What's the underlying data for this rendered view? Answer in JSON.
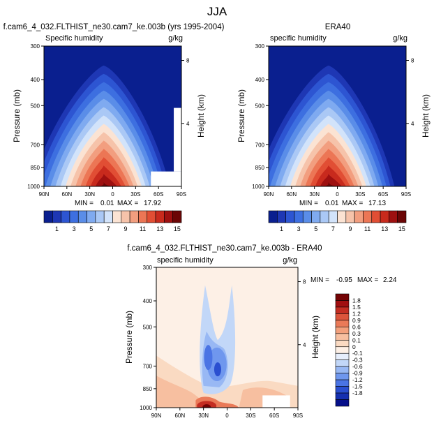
{
  "page_title": "JJA",
  "colors": {
    "abs_levels": [
      "#0a1f8f",
      "#1e37b4",
      "#2d55d2",
      "#3d6fe0",
      "#5a8de8",
      "#7faaf0",
      "#aac8f5",
      "#d2e3fa",
      "#fbe3d3",
      "#f6c3aa",
      "#f29e7f",
      "#ec7655",
      "#e14e34",
      "#c82a1d",
      "#9e1010",
      "#6b0606"
    ],
    "diff_levels": [
      "#050f8a",
      "#1530b0",
      "#2a4fd0",
      "#4a74e4",
      "#6f97ee",
      "#98b8f4",
      "#c2d7f8",
      "#e6eefc",
      "#fdf0e6",
      "#fadac2",
      "#f7bfa0",
      "#f3a07c",
      "#ea7a58",
      "#dc543b",
      "#c42d22",
      "#a10f10",
      "#740405"
    ]
  },
  "chart_data": [
    {
      "id": "model",
      "type": "heatmap",
      "title": "f.cam6_4_032.FLTHIST_ne30.cam7_ke.003b (yrs 1995-2004)",
      "left_label": "Specific humidity",
      "units": "g/kg",
      "ylabel": "Pressure (mb)",
      "ylabel_right": "Height (km)",
      "yticks": [
        "300",
        "400",
        "500",
        "700",
        "850",
        "1000"
      ],
      "ytick_values": [
        300,
        400,
        500,
        700,
        850,
        1000
      ],
      "height_ticks": [
        "8",
        "4"
      ],
      "height_tick_values": [
        8,
        4
      ],
      "xticks": [
        "90N",
        "60N",
        "30N",
        "0",
        "30S",
        "60S",
        "90S"
      ],
      "xtick_values": [
        90,
        60,
        30,
        0,
        -30,
        -60,
        -90
      ],
      "ylim": [
        300,
        1000
      ],
      "xlim": [
        90,
        -90
      ],
      "peak": {
        "lat": 10,
        "p": 1000
      },
      "min_label": "MIN =",
      "min_value": "0.01",
      "max_label": "MAX =",
      "max_value": "17.92",
      "masked_region": {
        "lat_from": -50,
        "lat_to": -90,
        "p_from": 880,
        "p_to": 1000,
        "above_lat": -90,
        "above_p": 510
      }
    },
    {
      "id": "obs",
      "type": "heatmap",
      "title": "ERA40",
      "left_label": "specific humidity",
      "units": "g/kg",
      "ylabel": "Pressure (mb)",
      "ylabel_right": "Height (km)",
      "yticks": [
        "300",
        "400",
        "500",
        "700",
        "850",
        "1000"
      ],
      "ytick_values": [
        300,
        400,
        500,
        700,
        850,
        1000
      ],
      "height_ticks": [
        "8",
        "4"
      ],
      "height_tick_values": [
        8,
        4
      ],
      "xticks": [
        "90N",
        "60N",
        "30N",
        "0",
        "30S",
        "60S",
        "90S"
      ],
      "xtick_values": [
        90,
        60,
        30,
        0,
        -30,
        -60,
        -90
      ],
      "ylim": [
        300,
        1000
      ],
      "xlim": [
        90,
        -90
      ],
      "peak": {
        "lat": 10,
        "p": 1000
      },
      "min_label": "MIN =",
      "min_value": "0.01",
      "max_label": "MAX =",
      "max_value": "17.13"
    },
    {
      "id": "diff",
      "type": "heatmap",
      "title": "f.cam6_4_032.FLTHIST_ne30.cam7_ke.003b - ERA40",
      "left_label": "specific humidity",
      "units": "g/kg",
      "ylabel": "Pressure (mb)",
      "ylabel_right": "Height (km)",
      "yticks": [
        "300",
        "400",
        "500",
        "700",
        "850",
        "1000"
      ],
      "ytick_values": [
        300,
        400,
        500,
        700,
        850,
        1000
      ],
      "height_ticks": [
        "8",
        "4"
      ],
      "height_tick_values": [
        8,
        4
      ],
      "xticks": [
        "90N",
        "60N",
        "30N",
        "0",
        "30S",
        "60S",
        "90S"
      ],
      "xtick_values": [
        90,
        60,
        30,
        0,
        -30,
        -60,
        -90
      ],
      "ylim": [
        300,
        1000
      ],
      "xlim": [
        90,
        -90
      ],
      "min_label": "MIN =",
      "min_value": "-0.95",
      "max_label": "MAX =",
      "max_value": "2.24",
      "features": [
        {
          "kind": "negative",
          "lat": 15,
          "p": 680,
          "value": -0.9
        },
        {
          "kind": "negative",
          "lat": 28,
          "p": 620,
          "value": -0.6
        },
        {
          "kind": "positive",
          "lat": 28,
          "p": 970,
          "value": 1.5
        },
        {
          "kind": "positive",
          "lat": 80,
          "p": 850,
          "value": 0.6
        },
        {
          "kind": "positive",
          "lat": -40,
          "p": 880,
          "value": 0.6
        }
      ]
    }
  ],
  "colorbars": {
    "absolute": {
      "labels": [
        "1",
        "3",
        "5",
        "7",
        "9",
        "11",
        "13",
        "15"
      ],
      "values": [
        1,
        3,
        5,
        7,
        9,
        11,
        13,
        15
      ]
    },
    "difference": {
      "labels": [
        "1.8",
        "1.5",
        "1.2",
        "0.9",
        "0.6",
        "0.3",
        "0.1",
        "0",
        "-0.1",
        "-0.3",
        "-0.6",
        "-0.9",
        "-1.2",
        "-1.5",
        "-1.8"
      ],
      "values": [
        1.8,
        1.5,
        1.2,
        0.9,
        0.6,
        0.3,
        0.1,
        0,
        -0.1,
        -0.3,
        -0.6,
        -0.9,
        -1.2,
        -1.5,
        -1.8
      ]
    }
  }
}
